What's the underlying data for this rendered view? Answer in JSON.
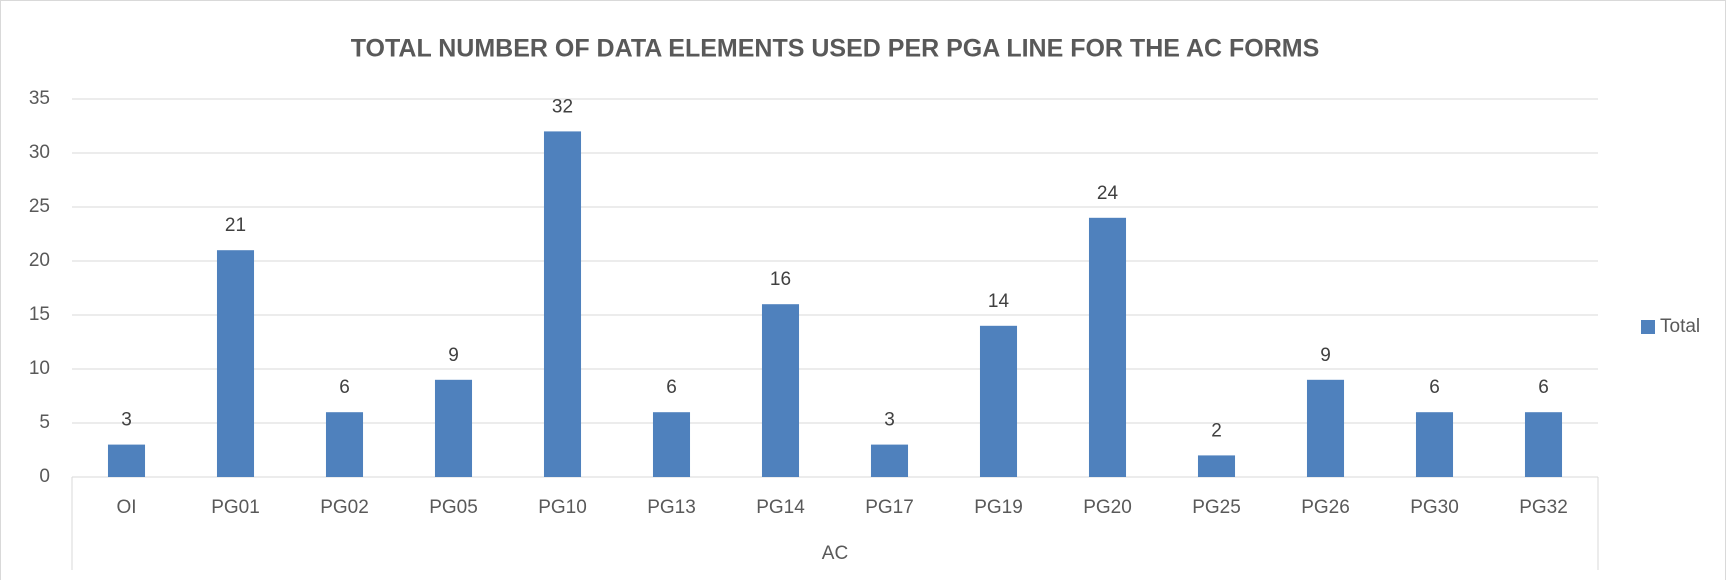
{
  "chart_data": {
    "type": "bar",
    "title": "TOTAL NUMBER OF DATA ELEMENTS USED PER PGA LINE FOR THE AC FORMS",
    "categories": [
      "OI",
      "PG01",
      "PG02",
      "PG05",
      "PG10",
      "PG13",
      "PG14",
      "PG17",
      "PG19",
      "PG20",
      "PG25",
      "PG26",
      "PG30",
      "PG32"
    ],
    "category_group": "AC",
    "series": [
      {
        "name": "Total",
        "color": "#4f81bd",
        "values": [
          3,
          21,
          6,
          9,
          32,
          6,
          16,
          3,
          14,
          24,
          2,
          9,
          6,
          6
        ]
      }
    ],
    "ylim": [
      0,
      35
    ],
    "yticks": [
      0,
      5,
      10,
      15,
      20,
      25,
      30,
      35
    ],
    "grid": true,
    "legend": "right"
  }
}
